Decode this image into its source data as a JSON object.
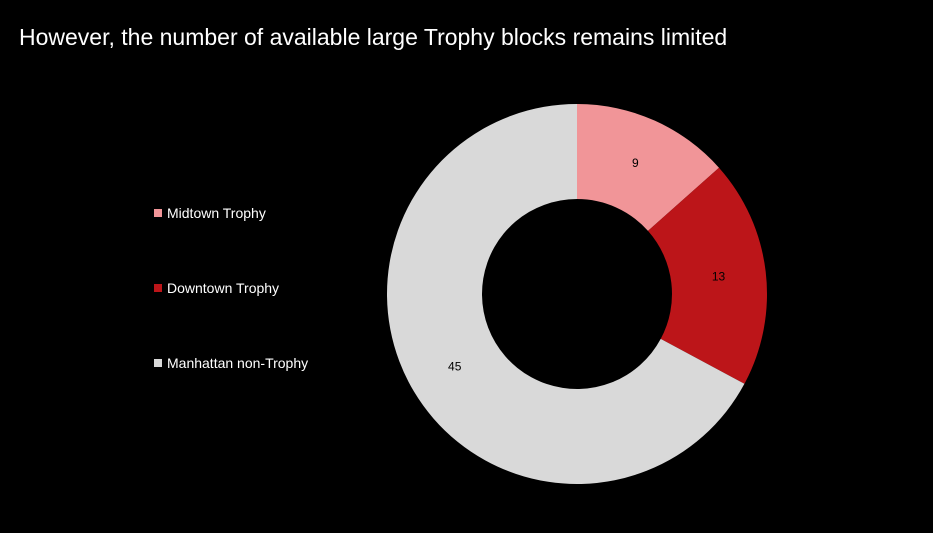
{
  "title": "However,  the number of available large Trophy blocks remains limited",
  "chart_data": {
    "type": "pie",
    "title": "However,  the number of available large Trophy blocks remains limited",
    "categories": [
      "Midtown Trophy",
      "Downtown Trophy",
      "Manhattan non-Trophy"
    ],
    "values": [
      9,
      13,
      45
    ],
    "colors": [
      "#f19598",
      "#bc1519",
      "#d9d9d9"
    ],
    "data_labels": [
      "9",
      "13",
      "45"
    ],
    "legend_position": "left",
    "donut": true
  }
}
